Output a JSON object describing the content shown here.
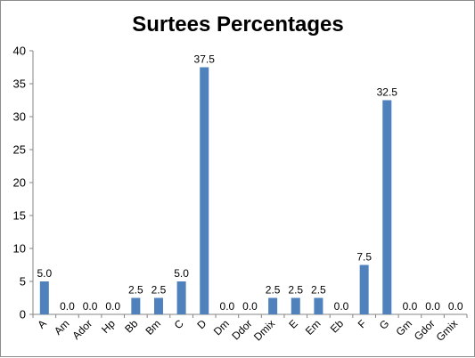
{
  "chart_data": {
    "type": "bar",
    "title": "Surtees Percentages",
    "xlabel": "",
    "ylabel": "",
    "categories": [
      "A",
      "Am",
      "Ador",
      "Hp",
      "Bb",
      "Bm",
      "C",
      "D",
      "Dm",
      "Ddor",
      "Dmix",
      "E",
      "Em",
      "Eb",
      "F",
      "G",
      "Gm",
      "Gdor",
      "Gmix"
    ],
    "values": [
      5.0,
      0.0,
      0.0,
      0.0,
      2.5,
      2.5,
      5.0,
      37.5,
      0.0,
      0.0,
      2.5,
      2.5,
      2.5,
      0.0,
      7.5,
      32.5,
      0.0,
      0.0,
      0.0
    ],
    "data_labels": [
      "5.0",
      "0.0",
      "0.0",
      "0.0",
      "2.5",
      "2.5",
      "5.0",
      "37.5",
      "0.0",
      "0.0",
      "2.5",
      "2.5",
      "2.5",
      "0.0",
      "7.5",
      "32.5",
      "0.0",
      "0.0",
      "0.0"
    ],
    "yticks": [
      "0",
      "5",
      "10",
      "15",
      "20",
      "25",
      "30",
      "35",
      "40"
    ],
    "ylim": [
      0,
      40
    ],
    "grid": false,
    "legend": "none",
    "bar_color": "#4f81bd",
    "axis_color": "#868686"
  }
}
